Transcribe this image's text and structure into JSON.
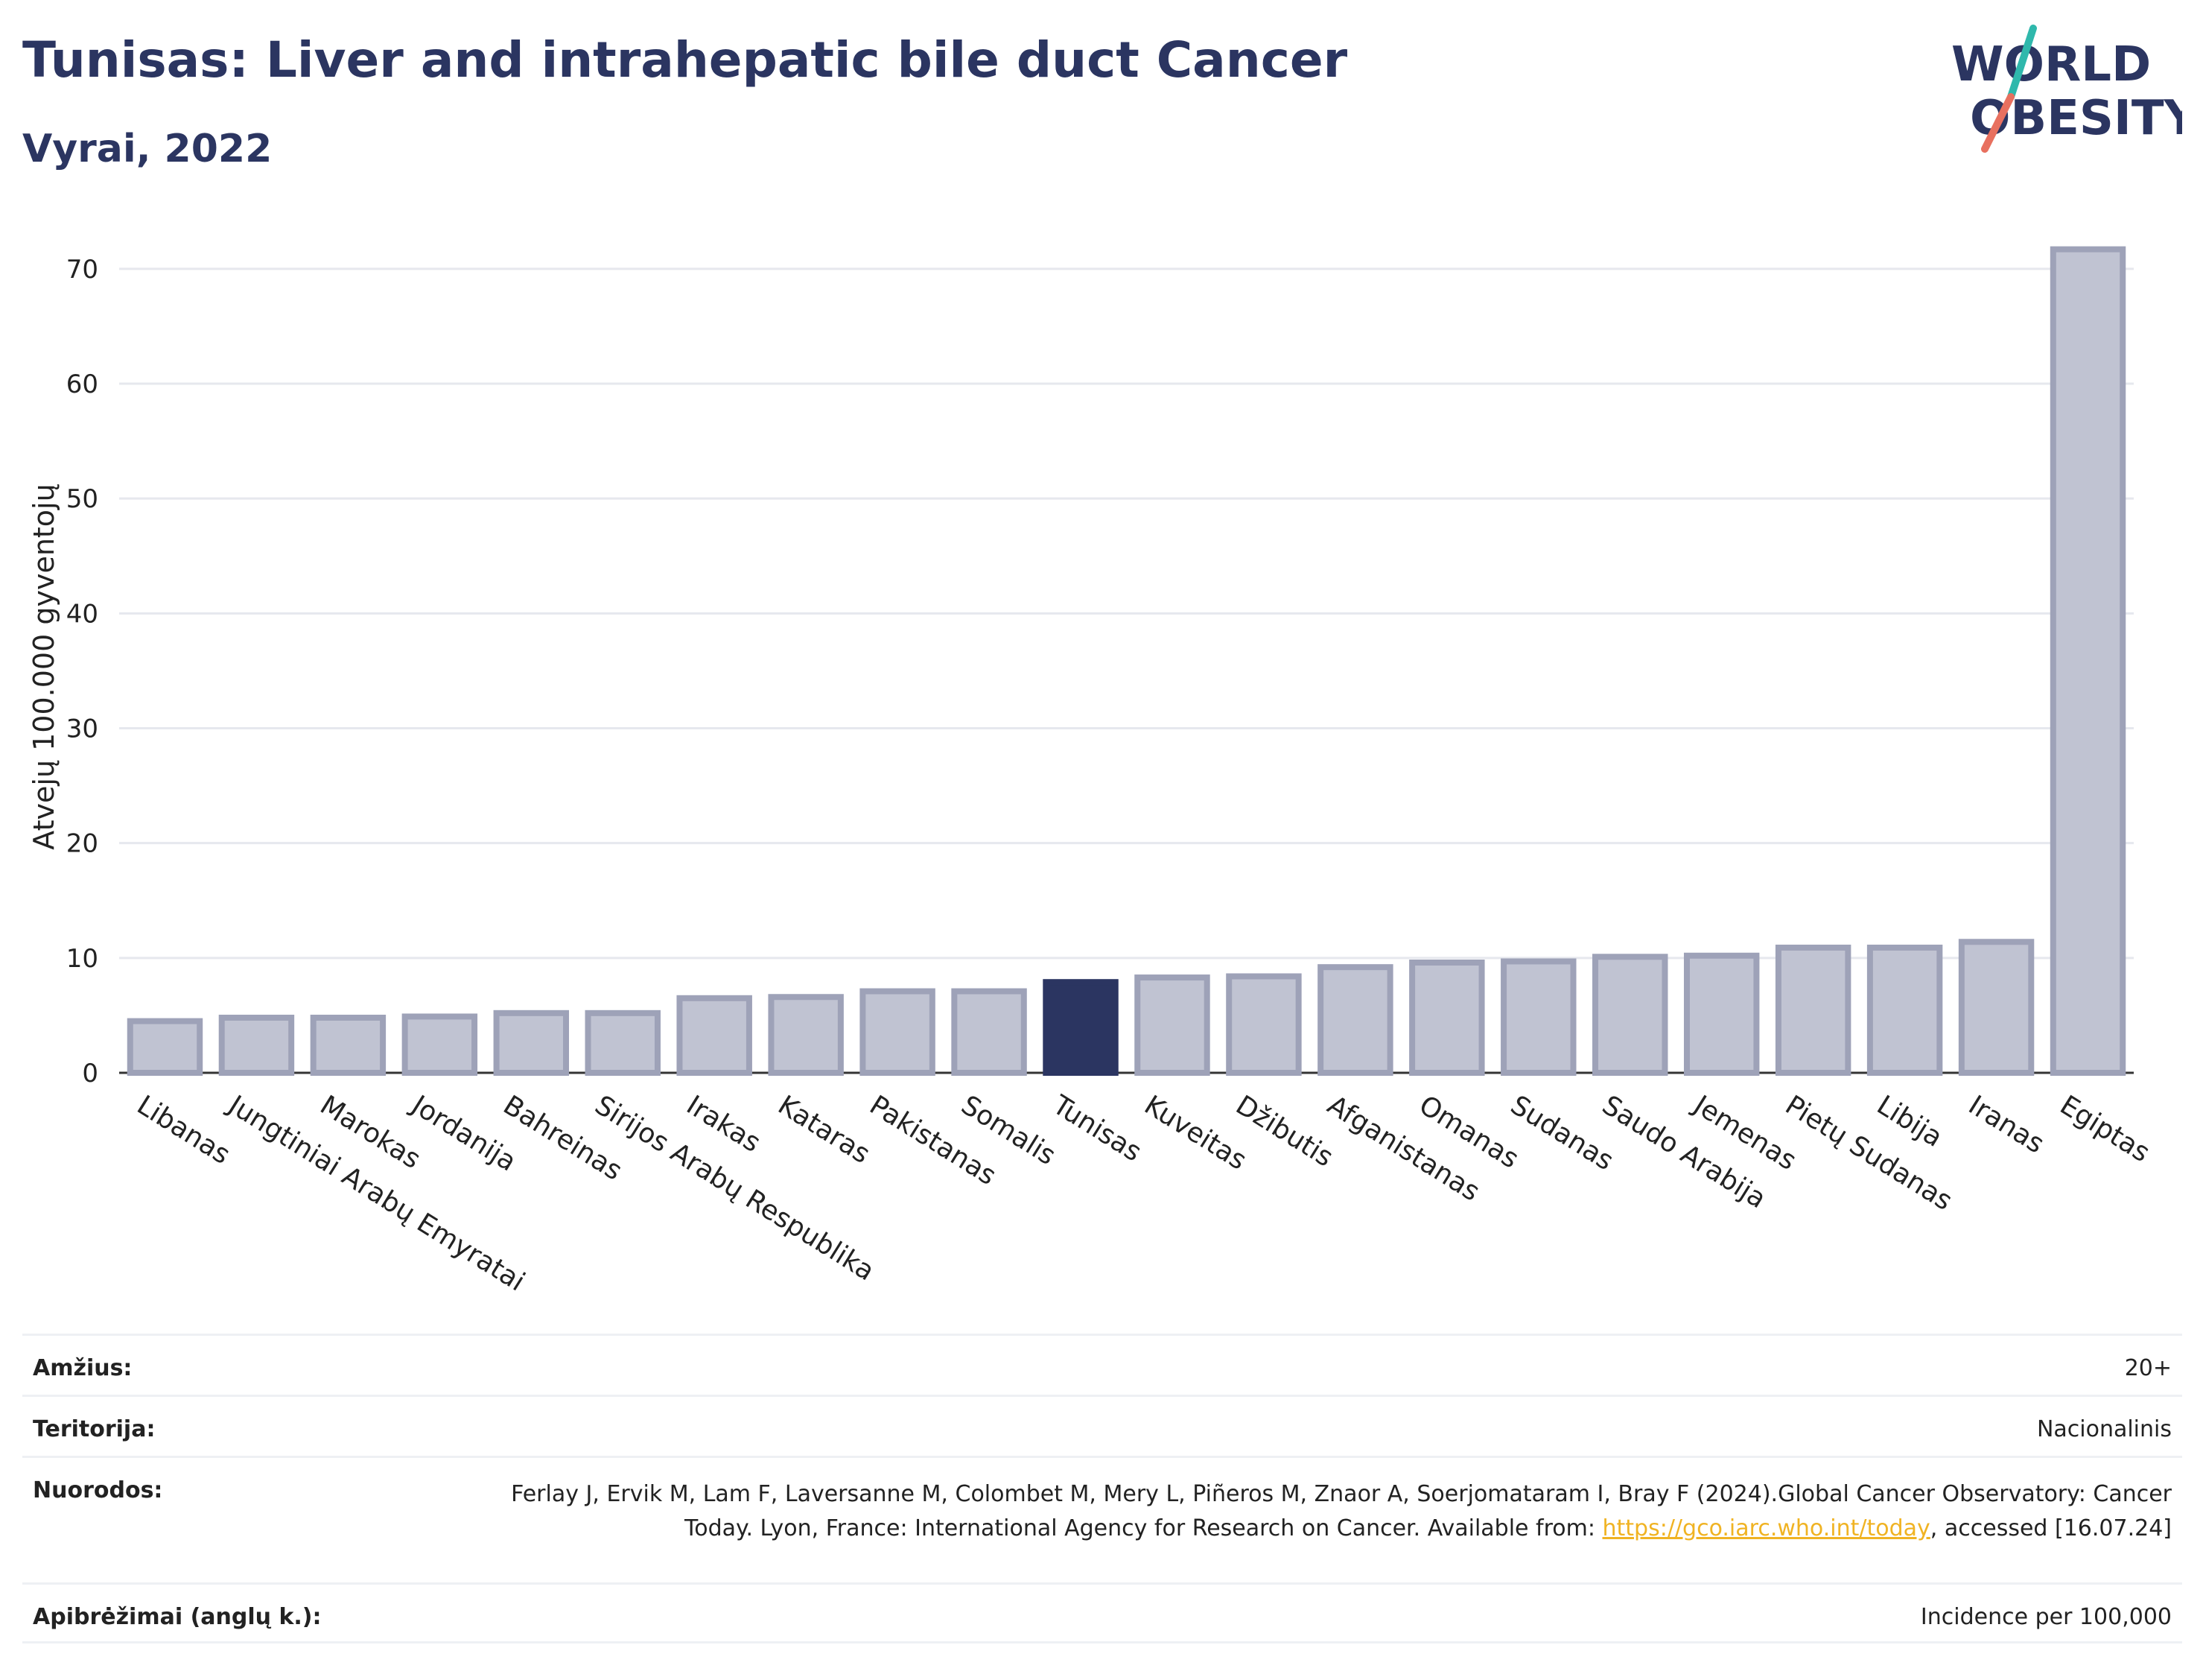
{
  "header": {
    "title": "Tunisas: Liver and intrahepatic bile duct Cancer",
    "subtitle": "Vyrai, 2022"
  },
  "logo": {
    "line1": "WORLD",
    "line2": "OBESITY",
    "accent1": "#2fb8ac",
    "accent2": "#e8705f",
    "color": "#2b3561"
  },
  "chart_data": {
    "type": "bar",
    "title": "Tunisas: Liver and intrahepatic bile duct Cancer",
    "subtitle": "Vyrai, 2022",
    "ylabel": "Atvejų 100.000 gyventojų",
    "xlabel": "",
    "ylim": [
      0,
      72
    ],
    "yticks": [
      0,
      10,
      20,
      30,
      40,
      50,
      60,
      70
    ],
    "grid": true,
    "highlight": "Tunisas",
    "highlight_color": "#2b3561",
    "bar_color": "#c0c3d2",
    "bar_border_color": "#9ea2b8",
    "categories": [
      "Libanas",
      "Jungtiniai Arabų Emyratai",
      "Marokas",
      "Jordanija",
      "Bahreinas",
      "Sirijos Arabų Respublika",
      "Irakas",
      "Kataras",
      "Pakistanas",
      "Somalis",
      "Tunisas",
      "Kuveitas",
      "Džibutis",
      "Afganistanas",
      "Omanas",
      "Sudanas",
      "Saudo Arabija",
      "Jemenas",
      "Pietų Sudanas",
      "Libija",
      "Iranas",
      "Egiptas"
    ],
    "values": [
      4.5,
      4.8,
      4.8,
      4.9,
      5.2,
      5.2,
      6.5,
      6.6,
      7.1,
      7.1,
      7.9,
      8.3,
      8.4,
      9.2,
      9.6,
      9.7,
      10.1,
      10.2,
      10.9,
      10.9,
      11.4,
      71.7
    ]
  },
  "meta": {
    "age_label": "Amžius:",
    "age_value": "20+",
    "territory_label": "Teritorija:",
    "territory_value": "Nacionalinis",
    "refs_label": "Nuorodos:",
    "refs_text": "Ferlay J, Ervik M, Lam F, Laversanne M, Colombet M, Mery L, Piñeros M, Znaor A, Soerjomataram I, Bray F (2024).Global Cancer Observatory: Cancer Today. Lyon, France: International Agency for Research on Cancer. Available from: ",
    "refs_link": "https://gco.iarc.who.int/today",
    "refs_after": ", accessed [16.07.24]",
    "defs_label": "Apibrėžimai (anglų k.):",
    "defs_value": "Incidence per 100,000"
  }
}
